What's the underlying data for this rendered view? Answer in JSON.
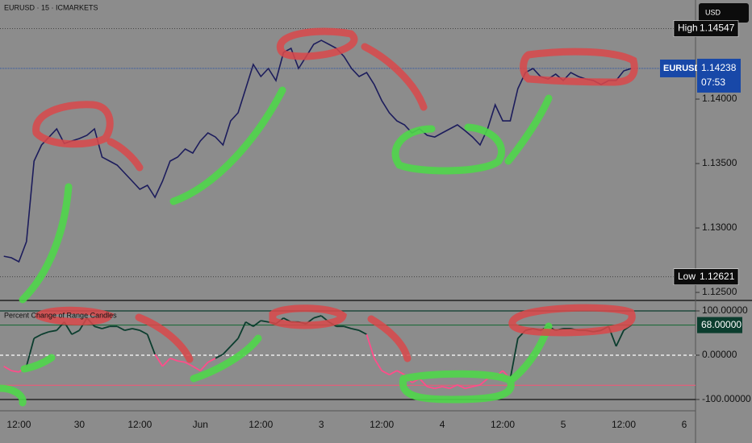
{
  "chart_data": [
    {
      "type": "line",
      "title": "EURUSD · 15 · ICMARKETS",
      "currency": "USD",
      "categories": [
        null,
        null,
        "12:00",
        null,
        null,
        null,
        null,
        null,
        null,
        null,
        "30",
        null,
        null,
        null,
        null,
        null,
        null,
        null,
        "12:00",
        null,
        null,
        null,
        null,
        null,
        null,
        null,
        "Jun",
        null,
        null,
        null,
        null,
        null,
        null,
        null,
        "12:00",
        null,
        null,
        null,
        null,
        null,
        null,
        null,
        "3",
        null,
        null,
        null,
        null,
        null,
        null,
        null,
        "12:00",
        null,
        null,
        null,
        null,
        null,
        null,
        null,
        "4",
        null,
        null,
        null,
        null,
        null,
        null,
        null,
        "12:00",
        null,
        null,
        null,
        null,
        null,
        null,
        null,
        "5",
        null,
        null,
        null,
        null,
        null,
        null,
        null,
        "12:00",
        null,
        null,
        null,
        null,
        null,
        null,
        null,
        "6",
        null
      ],
      "series": [
        {
          "name": "EURUSD",
          "color": "#1c1c5c",
          "values": [
            1.12781,
            1.12769,
            1.12738,
            1.12894,
            1.13519,
            1.13644,
            1.13706,
            1.13769,
            1.13656,
            1.13675,
            1.13694,
            1.13719,
            1.13769,
            1.1355,
            1.13519,
            1.13488,
            1.13425,
            1.13363,
            1.133,
            1.13331,
            1.13238,
            1.13363,
            1.13519,
            1.1355,
            1.13613,
            1.13581,
            1.13675,
            1.13738,
            1.13706,
            1.13644,
            1.13831,
            1.13894,
            1.14081,
            1.14269,
            1.14175,
            1.14238,
            1.14144,
            1.14363,
            1.14394,
            1.14238,
            1.14331,
            1.14425,
            1.14456,
            1.14425,
            1.14394,
            1.14331,
            1.14238,
            1.14175,
            1.14206,
            1.14113,
            1.13988,
            1.13894,
            1.13831,
            1.138,
            1.13738,
            1.13769,
            1.13719,
            1.13706,
            1.13738,
            1.13769,
            1.138,
            1.13756,
            1.13706,
            1.13644,
            1.13769,
            1.13956,
            1.13831,
            1.13831,
            1.14081,
            1.14206,
            1.14238,
            1.14175,
            1.14156,
            1.14194,
            1.14144,
            1.14206,
            1.14175,
            1.14156,
            1.14144,
            1.14113,
            1.14144,
            1.14144,
            1.14219,
            1.14238,
            null,
            null,
            null,
            null,
            null,
            null,
            null,
            null
          ]
        }
      ],
      "ylim": [
        1.12444,
        1.14769
      ],
      "yticks": [
        {
          "value": 1.125,
          "label": "1.12500"
        },
        {
          "value": 1.13,
          "label": "1.13000"
        },
        {
          "value": 1.135,
          "label": "1.13500"
        },
        {
          "value": 1.14,
          "label": "1.14000"
        }
      ],
      "high": {
        "name": "High",
        "value": 1.14547
      },
      "low": {
        "name": "Low",
        "value": 1.12621
      },
      "last": {
        "name": "EURUSD",
        "value": 1.14238,
        "countdown": "07:53",
        "color": "#1848a8"
      }
    },
    {
      "type": "line",
      "title": "Percent Change of Range Candles",
      "categories": [
        null,
        null,
        "12:00",
        null,
        null,
        null,
        null,
        null,
        null,
        null,
        "30",
        null,
        null,
        null,
        null,
        null,
        null,
        null,
        "12:00",
        null,
        null,
        null,
        null,
        null,
        null,
        null,
        "Jun",
        null,
        null,
        null,
        null,
        null,
        null,
        null,
        "12:00",
        null,
        null,
        null,
        null,
        null,
        null,
        null,
        "3",
        null,
        null,
        null,
        null,
        null,
        null,
        null,
        "12:00",
        null,
        null,
        null,
        null,
        null,
        null,
        null,
        "4",
        null,
        null,
        null,
        null,
        null,
        null,
        null,
        "12:00",
        null,
        null,
        null,
        null,
        null,
        null,
        null,
        "5",
        null,
        null,
        null,
        null,
        null,
        null,
        null,
        "12:00",
        null,
        null,
        null,
        null,
        null,
        null,
        null,
        "6",
        null
      ],
      "series": [
        {
          "name": "Percent Change of Range Candles",
          "positive_color": "#0b3d2e",
          "negative_color": "#ff4d8a",
          "values": [
            -25,
            -35,
            -38,
            -25,
            38,
            47,
            53,
            56,
            75,
            47,
            56,
            84,
            65,
            60,
            65,
            65,
            56,
            60,
            56,
            47,
            2,
            -25,
            -7,
            -13,
            -16,
            -25,
            -35,
            -16,
            -7,
            2,
            20,
            38,
            75,
            65,
            78,
            75,
            71,
            84,
            75,
            75,
            71,
            84,
            89,
            75,
            65,
            65,
            60,
            56,
            47,
            -7,
            -35,
            -44,
            -35,
            -44,
            -62,
            -53,
            -71,
            -75,
            -71,
            -75,
            -67,
            -75,
            -71,
            -67,
            -53,
            -49,
            -35,
            -53,
            38,
            56,
            60,
            56,
            65,
            56,
            60,
            60,
            56,
            56,
            53,
            56,
            65,
            20,
            56,
            68,
            null,
            null,
            null,
            null,
            null,
            null,
            null,
            null
          ],
          "last_label": "68.00000"
        }
      ],
      "ylim": [
        -125.5,
        121.8
      ],
      "yticks": [
        {
          "value": 100,
          "label": "100.00000"
        },
        {
          "value": 0,
          "label": "0.00000"
        },
        {
          "value": -100,
          "label": "-100.00000"
        }
      ],
      "hlines": [
        {
          "value": 100,
          "color": "#0b3d2e"
        },
        {
          "value": 68,
          "color": "#1f6b3a"
        },
        {
          "value": 0,
          "color": "#ffffff",
          "dash": true
        },
        {
          "value": -68,
          "color": "#e0607a"
        },
        {
          "value": -100,
          "color": "#111111"
        }
      ]
    }
  ]
}
